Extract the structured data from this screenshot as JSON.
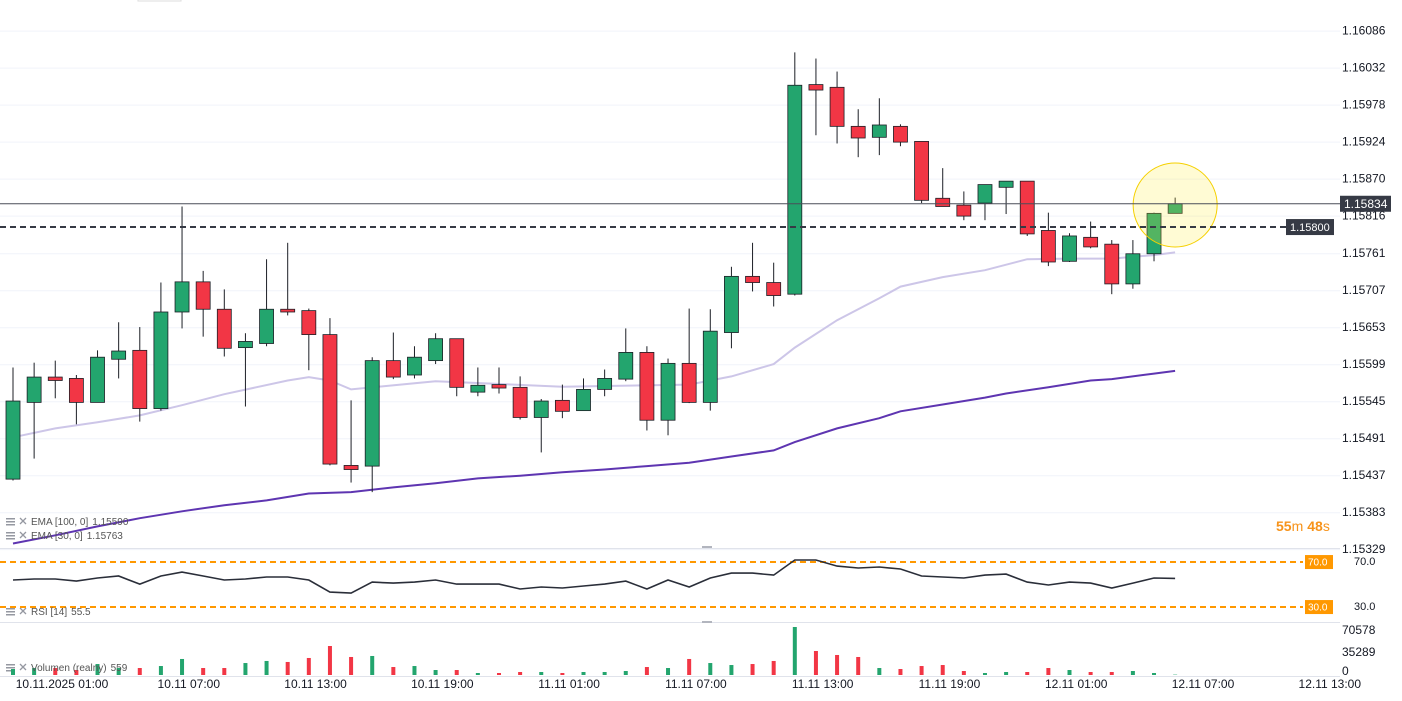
{
  "chart_data": [
    {
      "type": "candlestick",
      "up_color": "#23a56e",
      "down_color": "#f23645",
      "open": [
        1.15432,
        1.15544,
        1.15581,
        1.15579,
        1.15544,
        1.15607,
        1.1562,
        1.15535,
        1.15676,
        1.1572,
        1.1568,
        1.15624,
        1.1563,
        1.1568,
        1.15678,
        1.15643,
        1.15452,
        1.15451,
        1.15605,
        1.15584,
        1.15605,
        1.15637,
        1.15559,
        1.1557,
        1.15566,
        1.15522,
        1.15547,
        1.15532,
        1.15563,
        1.15578,
        1.15617,
        1.15518,
        1.15601,
        1.15544,
        1.15646,
        1.15728,
        1.15719,
        1.15702,
        1.16008,
        1.16004,
        1.15947,
        1.15931,
        1.15947,
        1.15925,
        1.15842,
        1.15832,
        1.15835,
        1.15858,
        1.15867,
        1.15795,
        1.1575,
        1.15785,
        1.15775,
        1.15717,
        1.15761,
        1.1582
      ],
      "high": [
        1.15595,
        1.15602,
        1.15605,
        1.15584,
        1.1562,
        1.15661,
        1.15654,
        1.15719,
        1.1583,
        1.15736,
        1.15709,
        1.15645,
        1.15753,
        1.15777,
        1.15681,
        1.15667,
        1.15547,
        1.1561,
        1.15646,
        1.15626,
        1.15645,
        1.15637,
        1.15595,
        1.15595,
        1.15582,
        1.15549,
        1.1557,
        1.15579,
        1.15592,
        1.15652,
        1.15626,
        1.15608,
        1.15681,
        1.1568,
        1.15742,
        1.15777,
        1.15748,
        1.16055,
        1.16046,
        1.16027,
        1.15972,
        1.15988,
        1.1595,
        1.15925,
        1.15886,
        1.15852,
        1.15862,
        1.15867,
        1.15867,
        1.15821,
        1.15791,
        1.15808,
        1.15781,
        1.15781,
        1.15821,
        1.15843
      ],
      "low": [
        1.1543,
        1.15462,
        1.1555,
        1.15512,
        1.15544,
        1.15579,
        1.15516,
        1.15532,
        1.15652,
        1.1564,
        1.15611,
        1.15538,
        1.15626,
        1.15671,
        1.15591,
        1.15452,
        1.15427,
        1.15413,
        1.15578,
        1.15579,
        1.156,
        1.15553,
        1.15553,
        1.15557,
        1.15519,
        1.15471,
        1.15521,
        1.15532,
        1.15553,
        1.15575,
        1.15503,
        1.15496,
        1.15543,
        1.15532,
        1.15623,
        1.15706,
        1.15684,
        1.157,
        1.15934,
        1.15922,
        1.15902,
        1.15905,
        1.15918,
        1.15835,
        1.1583,
        1.1581,
        1.1581,
        1.15819,
        1.15787,
        1.15743,
        1.15749,
        1.15769,
        1.15702,
        1.1571,
        1.1575,
        1.1582
      ],
      "close": [
        1.15546,
        1.15581,
        1.15576,
        1.15544,
        1.1561,
        1.15619,
        1.15535,
        1.15676,
        1.1572,
        1.1568,
        1.15623,
        1.15633,
        1.1568,
        1.15676,
        1.15643,
        1.15454,
        1.15446,
        1.15605,
        1.15581,
        1.1561,
        1.15637,
        1.15566,
        1.15569,
        1.15565,
        1.15522,
        1.15546,
        1.15531,
        1.15563,
        1.15579,
        1.15617,
        1.15518,
        1.15601,
        1.15544,
        1.15648,
        1.15728,
        1.15719,
        1.157,
        1.16007,
        1.16,
        1.15947,
        1.1593,
        1.15949,
        1.15924,
        1.15839,
        1.1583,
        1.15816,
        1.15862,
        1.15867,
        1.1579,
        1.15749,
        1.15787,
        1.15771,
        1.15717,
        1.15761,
        1.1582,
        1.15834
      ],
      "overlays": [
        {
          "name": "EMA [100, 0]",
          "legend_label": "1.15590",
          "color": "#5e35b1",
          "x": [
            0,
            2,
            4,
            6,
            8,
            10,
            12,
            14,
            16,
            18,
            20,
            22,
            24,
            26,
            28,
            30,
            32,
            34,
            36,
            37,
            39,
            41,
            42,
            44,
            46,
            47,
            49,
            51,
            52,
            54,
            55
          ],
          "values": [
            1.15338,
            1.1535,
            1.15363,
            1.15375,
            1.15385,
            1.15394,
            1.15401,
            1.15411,
            1.15413,
            1.1542,
            1.15426,
            1.15433,
            1.15437,
            1.15442,
            1.15446,
            1.15451,
            1.15456,
            1.15465,
            1.15474,
            1.15486,
            1.15506,
            1.15521,
            1.15531,
            1.15541,
            1.15551,
            1.15557,
            1.15566,
            1.15576,
            1.15578,
            1.15586,
            1.1559
          ]
        },
        {
          "name": "EMA [30, 0]",
          "legend_label": "1.15763",
          "color": "#cdc6e8",
          "x": [
            0,
            2,
            4,
            6,
            8,
            10,
            13,
            14,
            15,
            16,
            20,
            26,
            32,
            34,
            36,
            37,
            39,
            41,
            42,
            44,
            46,
            48,
            50,
            52,
            54,
            55
          ],
          "values": [
            1.15493,
            1.15506,
            1.15515,
            1.15525,
            1.1554,
            1.15556,
            1.15576,
            1.15581,
            1.15576,
            1.15563,
            1.15575,
            1.15567,
            1.1557,
            1.15582,
            1.156,
            1.15624,
            1.15664,
            1.15696,
            1.15713,
            1.15727,
            1.15737,
            1.15753,
            1.15754,
            1.15754,
            1.15759,
            1.15763
          ]
        }
      ],
      "ylim": [
        1.1533,
        1.1613
      ],
      "yticks": [
        1.16086,
        1.16032,
        1.15978,
        1.15924,
        {
          "value": 1.1587,
          "label": "1.15870"
        },
        1.15816,
        1.15761,
        1.15707,
        1.15653,
        1.15599,
        1.15545,
        1.15491,
        1.15437,
        1.15383,
        1.15329
      ],
      "grid": true,
      "current_price": 1.15834,
      "hline": {
        "value": 1.158,
        "label": "1.15800"
      },
      "timer": {
        "minutes": "55",
        "minutes_unit": "m",
        "seconds": "48",
        "seconds_unit": "s"
      },
      "xtick_labels": [
        "10.11.2025 01:00",
        "10.11 07:00",
        "10.11 13:00",
        "10.11 19:00",
        "11.11 01:00",
        "11.11 07:00",
        "11.11 13:00",
        "11.11 19:00",
        "12.11 01:00",
        "12.11 07:00",
        "12.11 13:00"
      ]
    },
    {
      "type": "line",
      "name": "RSI [14]",
      "color": "#2a2e39",
      "values": [
        54.0,
        54.9,
        54.9,
        53.1,
        55.8,
        57.6,
        50.4,
        57.6,
        61.1,
        57.6,
        54.0,
        54.9,
        56.7,
        56.7,
        54.0,
        43.3,
        42.4,
        52.2,
        51.3,
        52.2,
        54.0,
        50.4,
        50.4,
        50.4,
        46.0,
        47.8,
        46.9,
        48.7,
        50.4,
        53.1,
        46.0,
        54.0,
        47.8,
        55.8,
        60.2,
        60.2,
        58.4,
        71.8,
        71.8,
        66.4,
        64.7,
        65.6,
        63.8,
        57.6,
        56.7,
        55.8,
        58.4,
        59.3,
        52.2,
        49.6,
        52.2,
        51.3,
        46.9,
        51.3,
        55.8,
        55.5
      ],
      "ylim": [
        17.6,
        81.6
      ],
      "yticks": [
        {
          "value": 70,
          "label": "70.0"
        },
        {
          "value": 30,
          "label": "30.0"
        }
      ],
      "level_color": "#ff9800"
    },
    {
      "type": "bar",
      "name": "Volumen (realny)",
      "values": [
        9600,
        11200,
        11200,
        8000,
        17600,
        11200,
        11200,
        14400,
        25700,
        11200,
        11200,
        19200,
        22500,
        20900,
        27300,
        46500,
        28900,
        30500,
        12800,
        14400,
        8000,
        8000,
        3200,
        3200,
        4800,
        4800,
        3200,
        4800,
        4800,
        6400,
        12800,
        11200,
        25700,
        19200,
        16000,
        17600,
        22500,
        77000,
        38500,
        32100,
        28900,
        11200,
        9600,
        14400,
        16000,
        6400,
        3200,
        4800,
        4800,
        11200,
        8000,
        4800,
        4800,
        6400,
        3200,
        559
      ],
      "ylim": [
        0,
        80200
      ],
      "yticks": [
        70578,
        35289,
        0
      ]
    }
  ]
}
